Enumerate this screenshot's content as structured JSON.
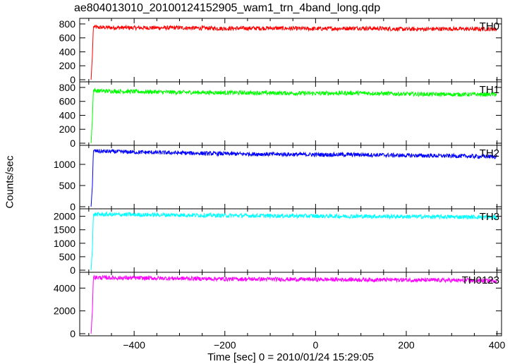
{
  "title": "ae804013010_20100124152905_wam1_trn_4band_long.qdp",
  "chart_data": {
    "type": "line",
    "title": "ae804013010_20100124152905_wam1_trn_4band_long.qdp",
    "xlabel": "Time [sec] 0 = 2010/01/24 15:29:05",
    "ylabel": "Counts/sec",
    "xlim": [
      -520,
      410
    ],
    "x_ticks": [
      -400,
      -200,
      0,
      200,
      400
    ],
    "x_tick_labels": [
      "−400",
      "−200",
      "0",
      "200",
      "400"
    ],
    "panels": [
      {
        "name": "TH0",
        "color": "#ff0000",
        "ylim": [
          0,
          850
        ],
        "y_ticks": [
          0,
          200,
          400,
          600,
          800
        ],
        "y_tick_labels": [
          "0",
          "200",
          "400",
          "600",
          "800"
        ],
        "series": [
          {
            "x": [
              -520,
              -495,
              -492,
              -490,
              -480,
              -400,
              -300,
              -200,
              -100,
              0,
              100,
              200,
              300,
              400
            ],
            "y": [
              0,
              0,
              350,
              760,
              750,
              745,
              745,
              735,
              740,
              730,
              740,
              725,
              730,
              725
            ]
          }
        ]
      },
      {
        "name": "TH1",
        "color": "#00ff00",
        "ylim": [
          0,
          850
        ],
        "y_ticks": [
          0,
          200,
          400,
          600,
          800
        ],
        "y_tick_labels": [
          "0",
          "200",
          "400",
          "600",
          "800"
        ],
        "series": [
          {
            "x": [
              -520,
              -495,
              -492,
              -490,
              -480,
              -400,
              -300,
              -200,
              -100,
              0,
              100,
              200,
              300,
              400
            ],
            "y": [
              0,
              0,
              350,
              760,
              750,
              740,
              730,
              725,
              720,
              715,
              720,
              705,
              700,
              700
            ]
          }
        ]
      },
      {
        "name": "TH2",
        "color": "#0000ff",
        "ylim": [
          0,
          1400
        ],
        "y_ticks": [
          0,
          500,
          1000
        ],
        "y_tick_labels": [
          "0",
          "500",
          "1000"
        ],
        "series": [
          {
            "x": [
              -520,
              -495,
              -492,
              -490,
              -480,
              -400,
              -300,
              -200,
              -100,
              0,
              100,
              200,
              300,
              400
            ],
            "y": [
              0,
              0,
              500,
              1320,
              1310,
              1290,
              1270,
              1250,
              1240,
              1230,
              1230,
              1210,
              1200,
              1180
            ]
          }
        ]
      },
      {
        "name": "TH3",
        "color": "#00ffff",
        "ylim": [
          0,
          2200
        ],
        "y_ticks": [
          0,
          500,
          1000,
          1500,
          2000
        ],
        "y_tick_labels": [
          "0",
          "500",
          "1000",
          "1500",
          "2000"
        ],
        "series": [
          {
            "x": [
              -520,
              -495,
              -492,
              -490,
              -480,
              -400,
              -300,
              -200,
              -100,
              0,
              100,
              200,
              300,
              400
            ],
            "y": [
              0,
              0,
              800,
              2080,
              2070,
              2060,
              2050,
              2030,
              2020,
              2010,
              2000,
              1990,
              1980,
              1970
            ]
          }
        ]
      },
      {
        "name": "TH0123",
        "color": "#ff00ff",
        "ylim": [
          0,
          5200
        ],
        "y_ticks": [
          0,
          2000,
          4000
        ],
        "y_tick_labels": [
          "0",
          "2000",
          "4000"
        ],
        "series": [
          {
            "x": [
              -520,
              -495,
              -492,
              -490,
              -480,
              -400,
              -300,
              -200,
              -100,
              0,
              100,
              200,
              300,
              400
            ],
            "y": [
              0,
              0,
              2000,
              4950,
              4920,
              4880,
              4850,
              4800,
              4780,
              4760,
              4740,
              4720,
              4680,
              4650
            ]
          }
        ]
      }
    ]
  }
}
